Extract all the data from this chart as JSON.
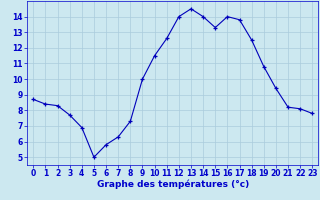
{
  "hours": [
    0,
    1,
    2,
    3,
    4,
    5,
    6,
    7,
    8,
    9,
    10,
    11,
    12,
    13,
    14,
    15,
    16,
    17,
    18,
    19,
    20,
    21,
    22,
    23
  ],
  "temps": [
    8.7,
    8.4,
    8.3,
    7.7,
    6.9,
    5.0,
    5.8,
    6.3,
    7.3,
    10.0,
    11.5,
    12.6,
    14.0,
    14.5,
    14.0,
    13.3,
    14.0,
    13.8,
    12.5,
    10.8,
    9.4,
    8.2,
    8.1,
    7.8
  ],
  "xlabel": "Graphe des températures (°c)",
  "ylim": [
    4.5,
    15.0
  ],
  "xlim": [
    -0.5,
    23.5
  ],
  "line_color": "#0000bb",
  "marker_color": "#0000bb",
  "bg_color": "#cce8f0",
  "grid_color": "#aaccdd",
  "tick_color": "#0000cc",
  "yticks": [
    5,
    6,
    7,
    8,
    9,
    10,
    11,
    12,
    13,
    14
  ],
  "xticks": [
    0,
    1,
    2,
    3,
    4,
    5,
    6,
    7,
    8,
    9,
    10,
    11,
    12,
    13,
    14,
    15,
    16,
    17,
    18,
    19,
    20,
    21,
    22,
    23
  ],
  "xlabel_color": "#0000cc",
  "tick_fontsize": 5.5,
  "xlabel_fontsize": 6.5
}
